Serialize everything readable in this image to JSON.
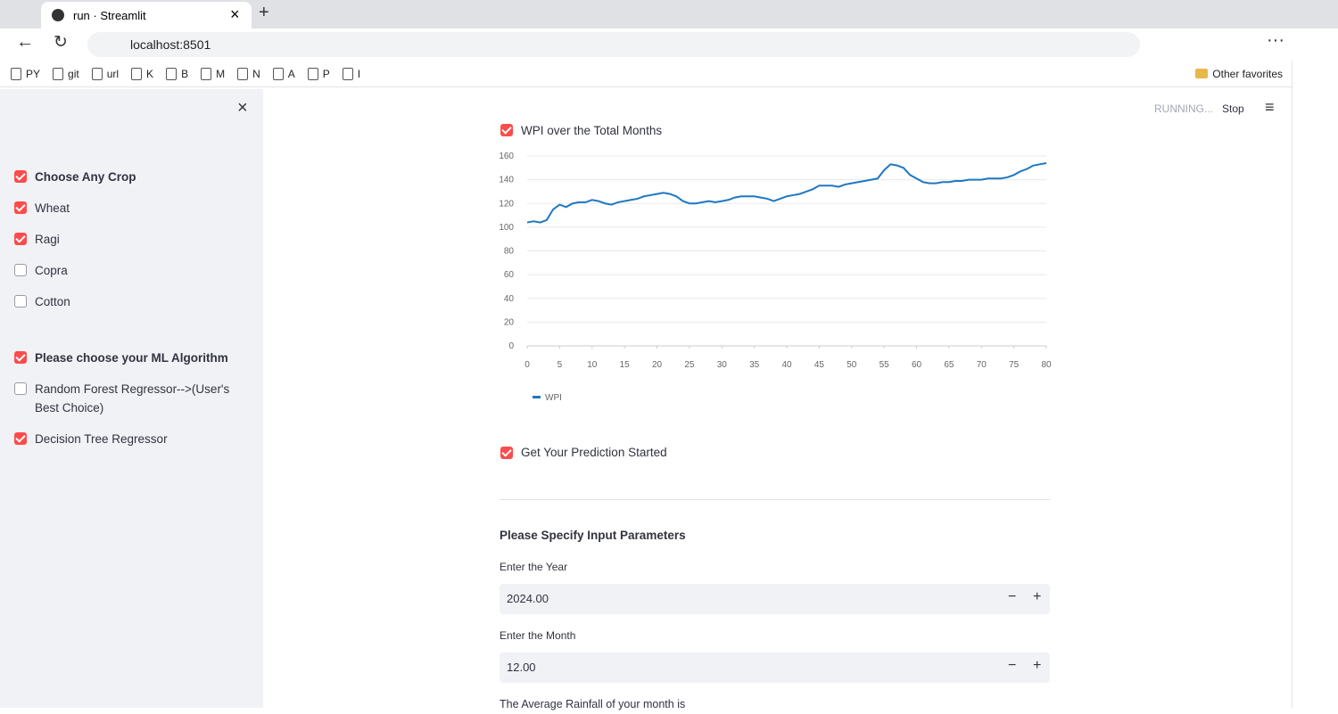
{
  "browser": {
    "tab_title": "run · Streamlit",
    "url": "localhost:8501",
    "bookmarks": [
      "PY",
      "git",
      "url",
      "K",
      "B",
      "M",
      "N",
      "A",
      "P",
      "I"
    ],
    "other_favorites": "Other favorites"
  },
  "sidebar": {
    "groups": [
      {
        "header": "Choose Any Crop",
        "checked": true,
        "options": [
          {
            "label": "Wheat",
            "checked": true
          },
          {
            "label": "Ragi",
            "checked": true
          },
          {
            "label": "Copra",
            "checked": false
          },
          {
            "label": "Cotton",
            "checked": false
          }
        ]
      },
      {
        "header": "Please choose your ML Algorithm",
        "checked": true,
        "options": [
          {
            "label": "Random Forest Regressor-->(User's Best Choice)",
            "checked": false
          },
          {
            "label": "Decision Tree Regressor",
            "checked": true
          }
        ]
      }
    ]
  },
  "header": {
    "status": "RUNNING...",
    "stop": "Stop"
  },
  "main": {
    "chart_toggle": "WPI over the Total Months",
    "chart_toggle_checked": true,
    "prediction_toggle": "Get Your Prediction Started",
    "prediction_toggle_checked": true,
    "params_header": "Please Specify Input Parameters",
    "inputs": [
      {
        "label": "Enter the Year",
        "value": "2024.00"
      },
      {
        "label": "Enter the Month",
        "value": "12.00"
      }
    ],
    "rainfall_label": "The Average Rainfall of your month is"
  },
  "chart_data": {
    "type": "line",
    "x": [
      0,
      1,
      2,
      3,
      4,
      5,
      6,
      7,
      8,
      9,
      10,
      11,
      12,
      13,
      14,
      15,
      16,
      17,
      18,
      19,
      20,
      21,
      22,
      23,
      24,
      25,
      26,
      27,
      28,
      29,
      30,
      31,
      32,
      33,
      34,
      35,
      36,
      37,
      38,
      39,
      40,
      41,
      42,
      43,
      44,
      45,
      46,
      47,
      48,
      49,
      50,
      51,
      52,
      53,
      54,
      55,
      56,
      57,
      58,
      59,
      60,
      61,
      62,
      63,
      64,
      65,
      66,
      67,
      68,
      69,
      70,
      71,
      72,
      73,
      74,
      75,
      76,
      77,
      78,
      79,
      80
    ],
    "series": [
      {
        "name": "WPI",
        "color": "#1f77c4",
        "values": [
          104,
          105,
          104,
          106,
          115,
          119,
          117,
          120,
          121,
          121,
          123,
          122,
          120,
          119,
          121,
          122,
          123,
          124,
          126,
          127,
          128,
          129,
          128,
          126,
          122,
          120,
          120,
          121,
          122,
          121,
          122,
          123,
          125,
          126,
          126,
          126,
          125,
          124,
          122,
          124,
          126,
          127,
          128,
          130,
          132,
          135,
          135,
          135,
          134,
          136,
          137,
          138,
          139,
          140,
          141,
          148,
          153,
          152,
          150,
          144,
          141,
          138,
          137,
          137,
          138,
          138,
          139,
          139,
          140,
          140,
          140,
          141,
          141,
          141,
          142,
          144,
          147,
          149,
          152,
          153,
          154
        ]
      }
    ],
    "xlim": [
      0,
      80
    ],
    "ylim": [
      0,
      160
    ],
    "xticks": [
      0,
      5,
      10,
      15,
      20,
      25,
      30,
      35,
      40,
      45,
      50,
      55,
      60,
      65,
      70,
      75,
      80
    ],
    "yticks": [
      0,
      20,
      40,
      60,
      80,
      100,
      120,
      140,
      160
    ],
    "grid": true,
    "legend": "bottom-left"
  }
}
